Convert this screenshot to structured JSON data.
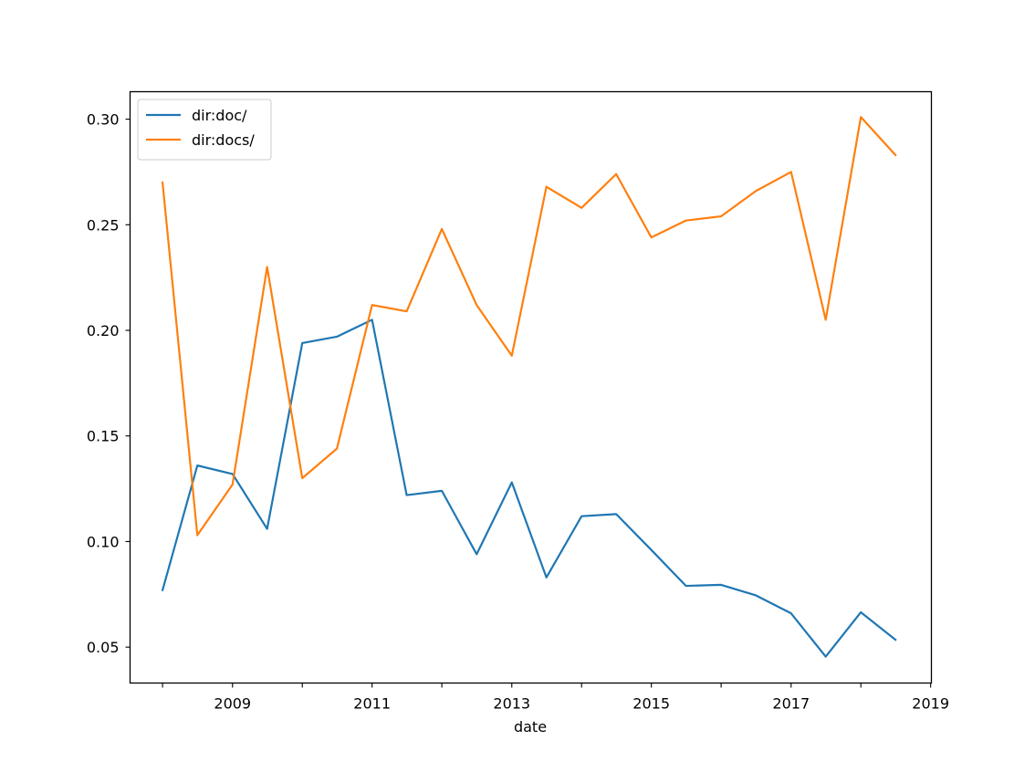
{
  "chart_data": {
    "type": "line",
    "title": "",
    "xlabel": "date",
    "ylabel": "",
    "xlim": [
      "2007-07-15",
      "2019-01-05"
    ],
    "ylim": [
      0.033,
      0.313
    ],
    "x": [
      "2008-01-01",
      "2008-07-01",
      "2009-01-01",
      "2009-07-01",
      "2010-01-01",
      "2010-07-01",
      "2011-01-01",
      "2011-07-01",
      "2012-01-01",
      "2012-07-01",
      "2013-01-01",
      "2013-07-01",
      "2014-01-01",
      "2014-07-01",
      "2015-01-01",
      "2015-07-01",
      "2016-01-01",
      "2016-07-01",
      "2017-01-01",
      "2017-07-01",
      "2018-01-01",
      "2018-07-01"
    ],
    "x_ticks": [
      {
        "date": "2008-01-01",
        "label": ""
      },
      {
        "date": "2009-01-01",
        "label": "2009"
      },
      {
        "date": "2010-01-01",
        "label": ""
      },
      {
        "date": "2011-01-01",
        "label": "2011"
      },
      {
        "date": "2012-01-01",
        "label": ""
      },
      {
        "date": "2013-01-01",
        "label": "2013"
      },
      {
        "date": "2014-01-01",
        "label": ""
      },
      {
        "date": "2015-01-01",
        "label": "2015"
      },
      {
        "date": "2016-01-01",
        "label": ""
      },
      {
        "date": "2017-01-01",
        "label": "2017"
      },
      {
        "date": "2018-01-01",
        "label": ""
      },
      {
        "date": "2019-01-01",
        "label": "2019"
      }
    ],
    "y_ticks": [
      {
        "value": 0.05,
        "label": "0.05"
      },
      {
        "value": 0.1,
        "label": "0.10"
      },
      {
        "value": 0.15,
        "label": "0.15"
      },
      {
        "value": 0.2,
        "label": "0.20"
      },
      {
        "value": 0.25,
        "label": "0.25"
      },
      {
        "value": 0.3,
        "label": "0.30"
      }
    ],
    "grid": false,
    "legend_position": "top-left",
    "series": [
      {
        "name": "dir:doc/",
        "color": "#1f77b4",
        "values": [
          0.077,
          0.136,
          0.132,
          0.106,
          0.194,
          0.197,
          0.205,
          0.122,
          0.124,
          0.094,
          0.128,
          0.083,
          0.112,
          0.113,
          0.096,
          0.079,
          0.0795,
          0.0745,
          0.066,
          0.0455,
          0.0665,
          0.0535
        ]
      },
      {
        "name": "dir:docs/",
        "color": "#ff7f0e",
        "values": [
          0.27,
          0.103,
          0.127,
          0.23,
          0.13,
          0.144,
          0.212,
          0.209,
          0.248,
          0.212,
          0.188,
          0.268,
          0.258,
          0.274,
          0.244,
          0.252,
          0.254,
          0.266,
          0.275,
          0.205,
          0.301,
          0.283
        ]
      }
    ]
  }
}
